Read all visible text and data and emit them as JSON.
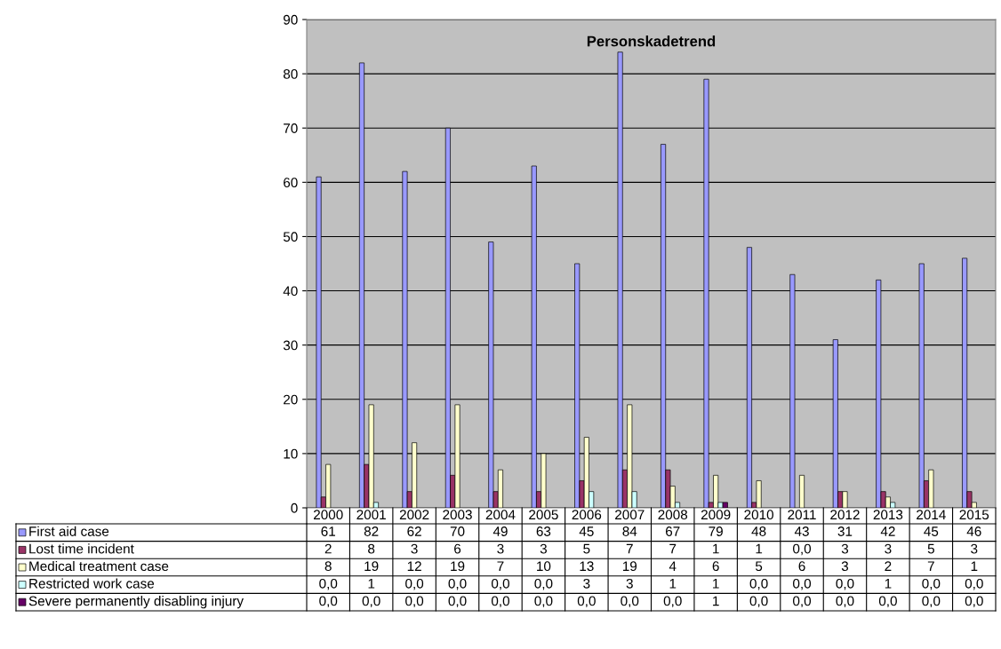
{
  "chart_data": {
    "type": "bar",
    "title": "Personskadetrend",
    "categories": [
      "2000",
      "2001",
      "2002",
      "2003",
      "2004",
      "2005",
      "2006",
      "2007",
      "2008",
      "2009",
      "2010",
      "2011",
      "2012",
      "2013",
      "2014",
      "2015"
    ],
    "ylim": [
      0,
      90
    ],
    "yticks": [
      0,
      10,
      20,
      30,
      40,
      50,
      60,
      70,
      80,
      90
    ],
    "grid": "y",
    "legend": "bottom left",
    "series": [
      {
        "name": "First aid case",
        "color": "#9999ff",
        "values": [
          61,
          82,
          62,
          70,
          49,
          63,
          45,
          84,
          67,
          79,
          48,
          43,
          31,
          42,
          45,
          46
        ],
        "value_labels": [
          "61",
          "82",
          "62",
          "70",
          "49",
          "63",
          "45",
          "84",
          "67",
          "79",
          "48",
          "43",
          "31",
          "42",
          "45",
          "46"
        ]
      },
      {
        "name": "Lost time incident",
        "color": "#993366",
        "values": [
          2,
          8,
          3,
          6,
          3,
          3,
          5,
          7,
          7,
          1,
          1,
          0,
          3,
          3,
          5,
          3
        ],
        "value_labels": [
          "2",
          "8",
          "3",
          "6",
          "3",
          "3",
          "5",
          "7",
          "7",
          "1",
          "1",
          "0,0",
          "3",
          "3",
          "5",
          "3"
        ]
      },
      {
        "name": "Medical treatment case",
        "color": "#ffffcc",
        "values": [
          8,
          19,
          12,
          19,
          7,
          10,
          13,
          19,
          4,
          6,
          5,
          6,
          3,
          2,
          7,
          1
        ],
        "value_labels": [
          "8",
          "19",
          "12",
          "19",
          "7",
          "10",
          "13",
          "19",
          "4",
          "6",
          "5",
          "6",
          "3",
          "2",
          "7",
          "1"
        ]
      },
      {
        "name": "Restricted work case",
        "color": "#ccffff",
        "values": [
          0,
          1,
          0,
          0,
          0,
          0,
          3,
          3,
          1,
          1,
          0,
          0,
          0,
          1,
          0,
          0
        ],
        "value_labels": [
          "0,0",
          "1",
          "0,0",
          "0,0",
          "0,0",
          "0,0",
          "3",
          "3",
          "1",
          "1",
          "0,0",
          "0,0",
          "0,0",
          "1",
          "0,0",
          "0,0"
        ]
      },
      {
        "name": "Severe permanently disabling injury",
        "color": "#660066",
        "values": [
          0,
          0,
          0,
          0,
          0,
          0,
          0,
          0,
          0,
          1,
          0,
          0,
          0,
          0,
          0,
          0
        ],
        "value_labels": [
          "0,0",
          "0,0",
          "0,0",
          "0,0",
          "0,0",
          "0,0",
          "0,0",
          "0,0",
          "0,0",
          "1",
          "0,0",
          "0,0",
          "0,0",
          "0,0",
          "0,0",
          "0,0"
        ]
      }
    ]
  }
}
